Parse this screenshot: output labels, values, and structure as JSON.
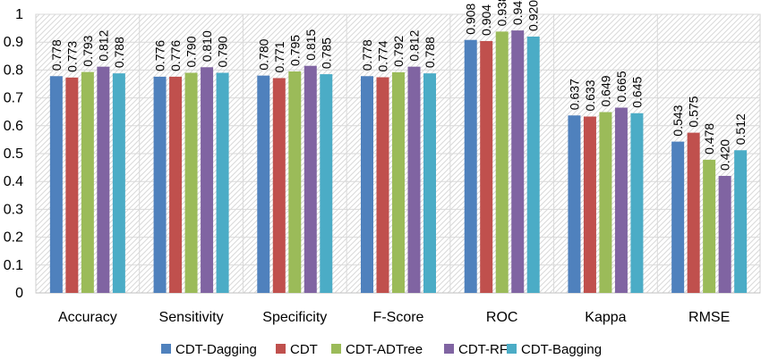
{
  "chart_data": {
    "type": "bar",
    "title": "",
    "xlabel": "",
    "ylabel": "",
    "ylim": [
      0,
      1
    ],
    "yticks": [
      0,
      0.1,
      0.2,
      0.3,
      0.4,
      0.5,
      0.6,
      0.7,
      0.8,
      0.9,
      1
    ],
    "ytick_labels": [
      "0",
      "0.1",
      "0.2",
      "0.3",
      "0.4",
      "0.5",
      "0.6",
      "0.7",
      "0.8",
      "0.9",
      "1"
    ],
    "grid": true,
    "legend_position": "bottom",
    "categories": [
      "Accuracy",
      "Sensitivity",
      "Specificity",
      "F-Score",
      "ROC",
      "Kappa",
      "RMSE"
    ],
    "series": [
      {
        "name": "CDT-Dagging",
        "color": "#4f81bd",
        "values": [
          0.778,
          0.776,
          0.78,
          0.778,
          0.908,
          0.637,
          0.543
        ],
        "labels": [
          "0.778",
          "0.776",
          "0.780",
          "0.778",
          "0.908",
          "0.637",
          "0.543"
        ]
      },
      {
        "name": "CDT",
        "color": "#c0504d",
        "values": [
          0.773,
          0.776,
          0.771,
          0.774,
          0.904,
          0.633,
          0.575
        ],
        "labels": [
          "0.773",
          "0.776",
          "0.771",
          "0.774",
          "0.904",
          "0.633",
          "0.575"
        ]
      },
      {
        "name": "CDT-ADTree",
        "color": "#9bbb59",
        "values": [
          0.793,
          0.79,
          0.795,
          0.792,
          0.938,
          0.649,
          0.478
        ],
        "labels": [
          "0.793",
          "0.790",
          "0.795",
          "0.792",
          "0.938",
          "0.649",
          "0.478"
        ]
      },
      {
        "name": "CDT-RF",
        "color": "#8064a2",
        "values": [
          0.812,
          0.81,
          0.815,
          0.812,
          0.942,
          0.665,
          0.42
        ],
        "labels": [
          "0.812",
          "0.810",
          "0.815",
          "0.812",
          "0.942",
          "0.665",
          "0.420"
        ]
      },
      {
        "name": "CDT-Bagging",
        "color": "#4bacc6",
        "values": [
          0.788,
          0.79,
          0.785,
          0.788,
          0.92,
          0.645,
          0.512
        ],
        "labels": [
          "0.788",
          "0.790",
          "0.785",
          "0.788",
          "0.920",
          "0.645",
          "0.512"
        ]
      }
    ]
  }
}
